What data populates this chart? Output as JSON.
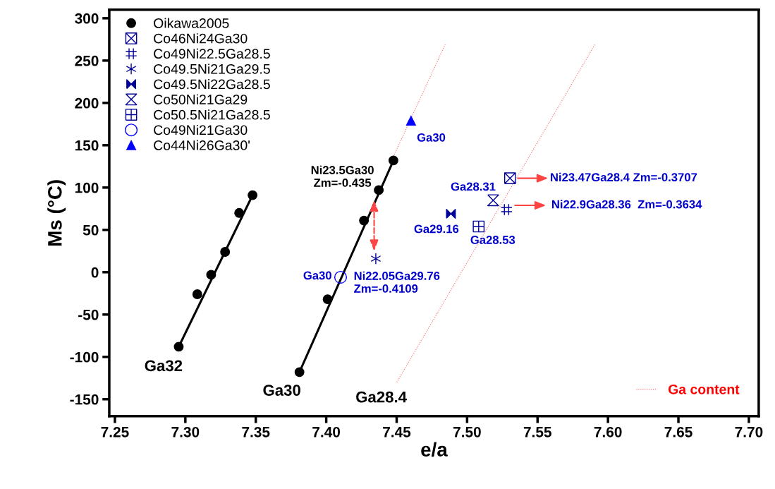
{
  "chart_data": {
    "type": "scatter",
    "xlabel": "e/a",
    "ylabel": "Ms (°C)",
    "xlim": [
      7.246,
      7.707
    ],
    "ylim": [
      -170,
      310
    ],
    "xticks": [
      {
        "value": 7.25,
        "label": "7.25"
      },
      {
        "value": 7.3,
        "label": "7.30"
      },
      {
        "value": 7.35,
        "label": "7.35"
      },
      {
        "value": 7.4,
        "label": "7.40"
      },
      {
        "value": 7.45,
        "label": "7.45"
      },
      {
        "value": 7.5,
        "label": "7.50"
      },
      {
        "value": 7.55,
        "label": "7.55"
      },
      {
        "value": 7.6,
        "label": "7.60"
      },
      {
        "value": 7.65,
        "label": "7.65"
      },
      {
        "value": 7.7,
        "label": "7.70"
      }
    ],
    "yticks": [
      -150,
      -100,
      -50,
      0,
      50,
      100,
      150,
      200,
      250,
      300
    ],
    "grid": false,
    "legend": "top left",
    "series": [
      {
        "name": "Oikawa2005",
        "marker": "circle",
        "color": "#000000",
        "x": [
          7.2953,
          7.3085,
          7.3183,
          7.3282,
          7.3382,
          7.3477,
          7.381,
          7.401,
          7.4268,
          7.4373,
          7.4477
        ],
        "values": [
          -88,
          -26,
          -3,
          24,
          70,
          91,
          -118,
          -32,
          61,
          97,
          132
        ]
      },
      {
        "name": "Co46Ni24Ga30",
        "color": "#000099",
        "x": [
          7.5305
        ],
        "values": [
          111
        ]
      },
      {
        "name": "Co49Ni22.5Ga28.5",
        "color": "#000099",
        "x": [
          7.528
        ],
        "values": [
          74
        ]
      },
      {
        "name": "Co49.5Ni21Ga29.5",
        "color": "#000099",
        "x": [
          7.4352
        ],
        "values": [
          16
        ]
      },
      {
        "name": "Co49.5Ni22Ga28.5",
        "color": "#000099",
        "x": [
          7.4885
        ],
        "values": [
          69
        ]
      },
      {
        "name": "Co50Ni21Ga29",
        "color": "#000099",
        "x": [
          7.5185
        ],
        "values": [
          85
        ]
      },
      {
        "name": "Co50.5Ni21Ga28.5",
        "color": "#000099",
        "x": [
          7.5082
        ],
        "values": [
          54
        ]
      },
      {
        "name": "Co49Ni21Ga30",
        "marker": "circle",
        "color": "#0000ff",
        "x": [
          7.4102
        ],
        "values": [
          -6
        ]
      },
      {
        "name": "Co44Ni26Ga30'",
        "marker": "triangle",
        "color": "#0000ff",
        "x": [
          7.4602
        ],
        "values": [
          179
        ]
      },
      {
        "type": "line",
        "color": "#000000",
        "line_style": "solid",
        "x": [
          7.2953,
          7.3477
        ],
        "values": [
          -88,
          91
        ]
      },
      {
        "type": "line",
        "color": "#000000",
        "line_style": "solid",
        "x": [
          7.381,
          7.4477
        ],
        "values": [
          -118,
          132
        ]
      },
      {
        "name": "Ga content",
        "type": "line",
        "color": "#ff0000",
        "line_style": "dotted",
        "x": [
          7.4478,
          7.4844
        ],
        "values": [
          137,
          269
        ]
      },
      {
        "type": "line",
        "color": "#ff0000",
        "line_style": "dotted",
        "x": [
          7.4501,
          7.5907
        ],
        "values": [
          -130,
          269
        ]
      }
    ],
    "annotations": [
      "Ga32",
      "Ga30",
      "Ga28.4",
      "Ni23.5Ga30\nZm=-0.435",
      "Ga30",
      "Ga30",
      "Ni22.05Ga29.76\nZm=-0.4109",
      "Ga28.31",
      "Ga29.16",
      "Ga28.53",
      "Ni23.47Ga28.4 Zm=-0.3707",
      "Ni22.9Ga28.36  Zm=-0.3634"
    ]
  }
}
